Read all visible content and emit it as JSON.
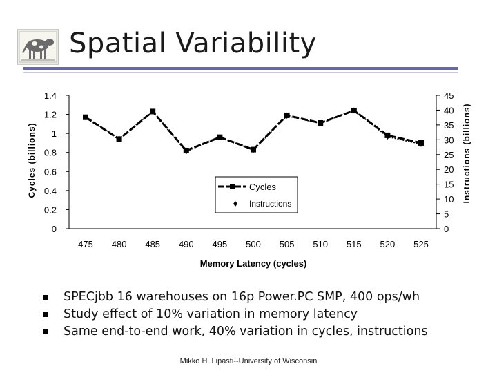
{
  "slide": {
    "title": "Spatial Variability",
    "bullets": [
      "SPECjbb 16 warehouses on 16p Power.PC SMP, 400 ops/wh",
      "Study effect of 10% variation in memory latency",
      "Same end-to-end work, 40% variation in cycles, instructions"
    ],
    "footer": "Mikko H. Lipasti--University of Wisconsin",
    "logo_icon": "cow-logo-icon"
  },
  "chart_data": {
    "type": "line",
    "xlabel": "Memory Latency (cycles)",
    "ylabel": "Cycles (billions)",
    "y2label": "Instructions (billions)",
    "categories": [
      "475",
      "480",
      "485",
      "490",
      "495",
      "500",
      "505",
      "510",
      "515",
      "520",
      "525"
    ],
    "ylim": [
      0,
      1.4
    ],
    "y2lim": [
      0,
      45
    ],
    "yticks": [
      "0",
      "0.2",
      "0.4",
      "0.6",
      "0.8",
      "1",
      "1.2",
      "1.4"
    ],
    "y2ticks": [
      "0",
      "5",
      "10",
      "15",
      "20",
      "25",
      "30",
      "35",
      "40",
      "45"
    ],
    "series": [
      {
        "name": "Cycles",
        "axis": "left",
        "values": [
          1.17,
          0.94,
          1.23,
          0.82,
          0.96,
          0.83,
          1.19,
          1.11,
          1.24,
          0.98,
          0.9
        ]
      },
      {
        "name": "Instructions",
        "axis": "right",
        "values": [
          37.5,
          30.5,
          39.5,
          26.0,
          31.0,
          26.5,
          38.0,
          35.5,
          40.0,
          31.0,
          28.5
        ]
      }
    ],
    "legend": "bottom-right",
    "grid": false,
    "colors": {
      "cycles": "#000000",
      "instructions": "#000000"
    }
  }
}
